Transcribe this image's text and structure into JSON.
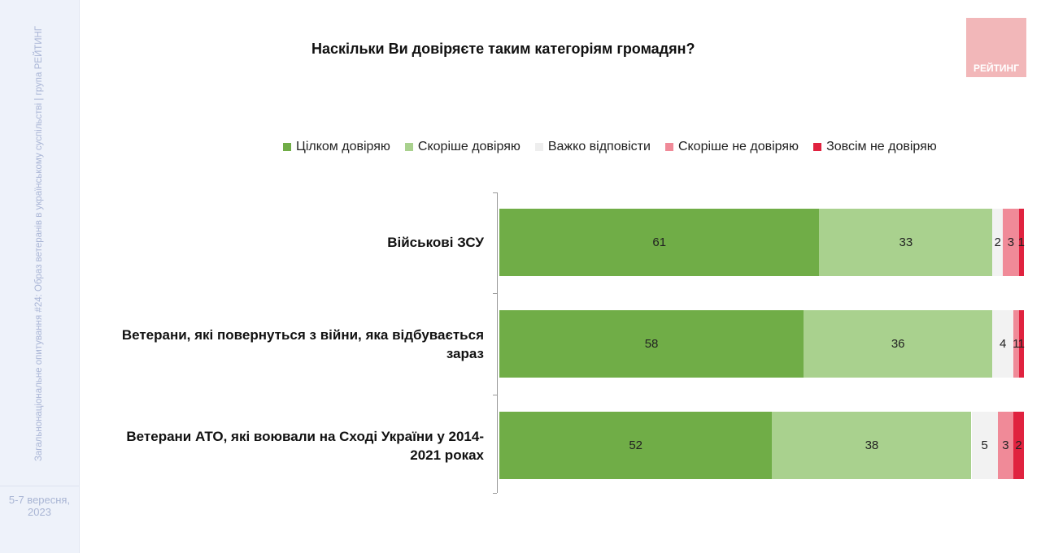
{
  "sidebar": {
    "text": "Загальнонаціональне опитування #24: Образ ветеранів в українському суспільстві | група РЕЙТИНГ",
    "date": "5-7 вересня, 2023"
  },
  "logo_text": "РЕЙТИНГ",
  "chart_data": {
    "type": "bar",
    "orientation": "horizontal-stacked-100",
    "title": "Наскільки Ви довіряєте таким категоріям громадян?",
    "legend_position": "top",
    "categories": [
      "Військові ЗСУ",
      "Ветерани, які повернуться з війни, яка відбувається зараз",
      "Ветерани АТО, які воювали на Сході України у 2014-2021 роках"
    ],
    "series": [
      {
        "name": "Цілком довіряю",
        "color": "#70ad47",
        "values": [
          61,
          58,
          52
        ]
      },
      {
        "name": "Скоріше довіряю",
        "color": "#a9d18e",
        "values": [
          33,
          36,
          38
        ]
      },
      {
        "name": "Важко відповісти",
        "color": "#f2f2f2",
        "values": [
          2,
          4,
          5
        ]
      },
      {
        "name": "Скоріше не довіряю",
        "color": "#f08a98",
        "values": [
          3,
          1,
          3
        ]
      },
      {
        "name": "Зовсім не довіряю",
        "color": "#e0223f",
        "values": [
          1,
          1,
          2
        ]
      }
    ],
    "xlim": [
      0,
      100
    ]
  }
}
